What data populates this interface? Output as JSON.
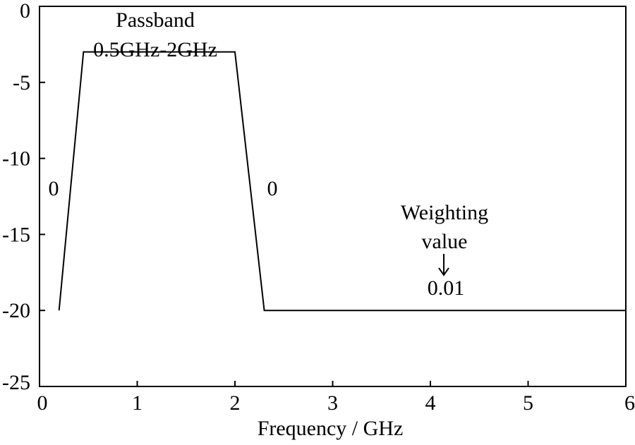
{
  "chart_data": {
    "type": "line",
    "title": "",
    "xlabel": "Frequency / GHz",
    "ylabel": "",
    "xlim": [
      0,
      6
    ],
    "ylim": [
      -25,
      0
    ],
    "x_ticks": [
      0,
      1,
      2,
      3,
      4,
      5,
      6
    ],
    "y_ticks": [
      0,
      -5,
      -10,
      -15,
      -20,
      -25
    ],
    "x_tick_labels": [
      "0",
      "1",
      "2",
      "3",
      "4",
      "5",
      "6"
    ],
    "y_tick_labels": [
      "0",
      "-5",
      "-10",
      "-15",
      "-20",
      "-25"
    ],
    "grid": false,
    "series": [
      {
        "x": [
          0.2,
          0.45,
          2.0,
          2.3,
          6.0
        ],
        "y": [
          -20,
          -3,
          -3,
          -20,
          -20
        ],
        "color": "#000000"
      }
    ],
    "annotations": {
      "passband_line1": "Passband",
      "passband_line2": "0.5GHz-2GHz",
      "left_slope_weight": "0",
      "right_slope_weight": "0",
      "weighting_line1": "Weighting",
      "weighting_line2": "value",
      "weighting_value": "0.01"
    }
  }
}
